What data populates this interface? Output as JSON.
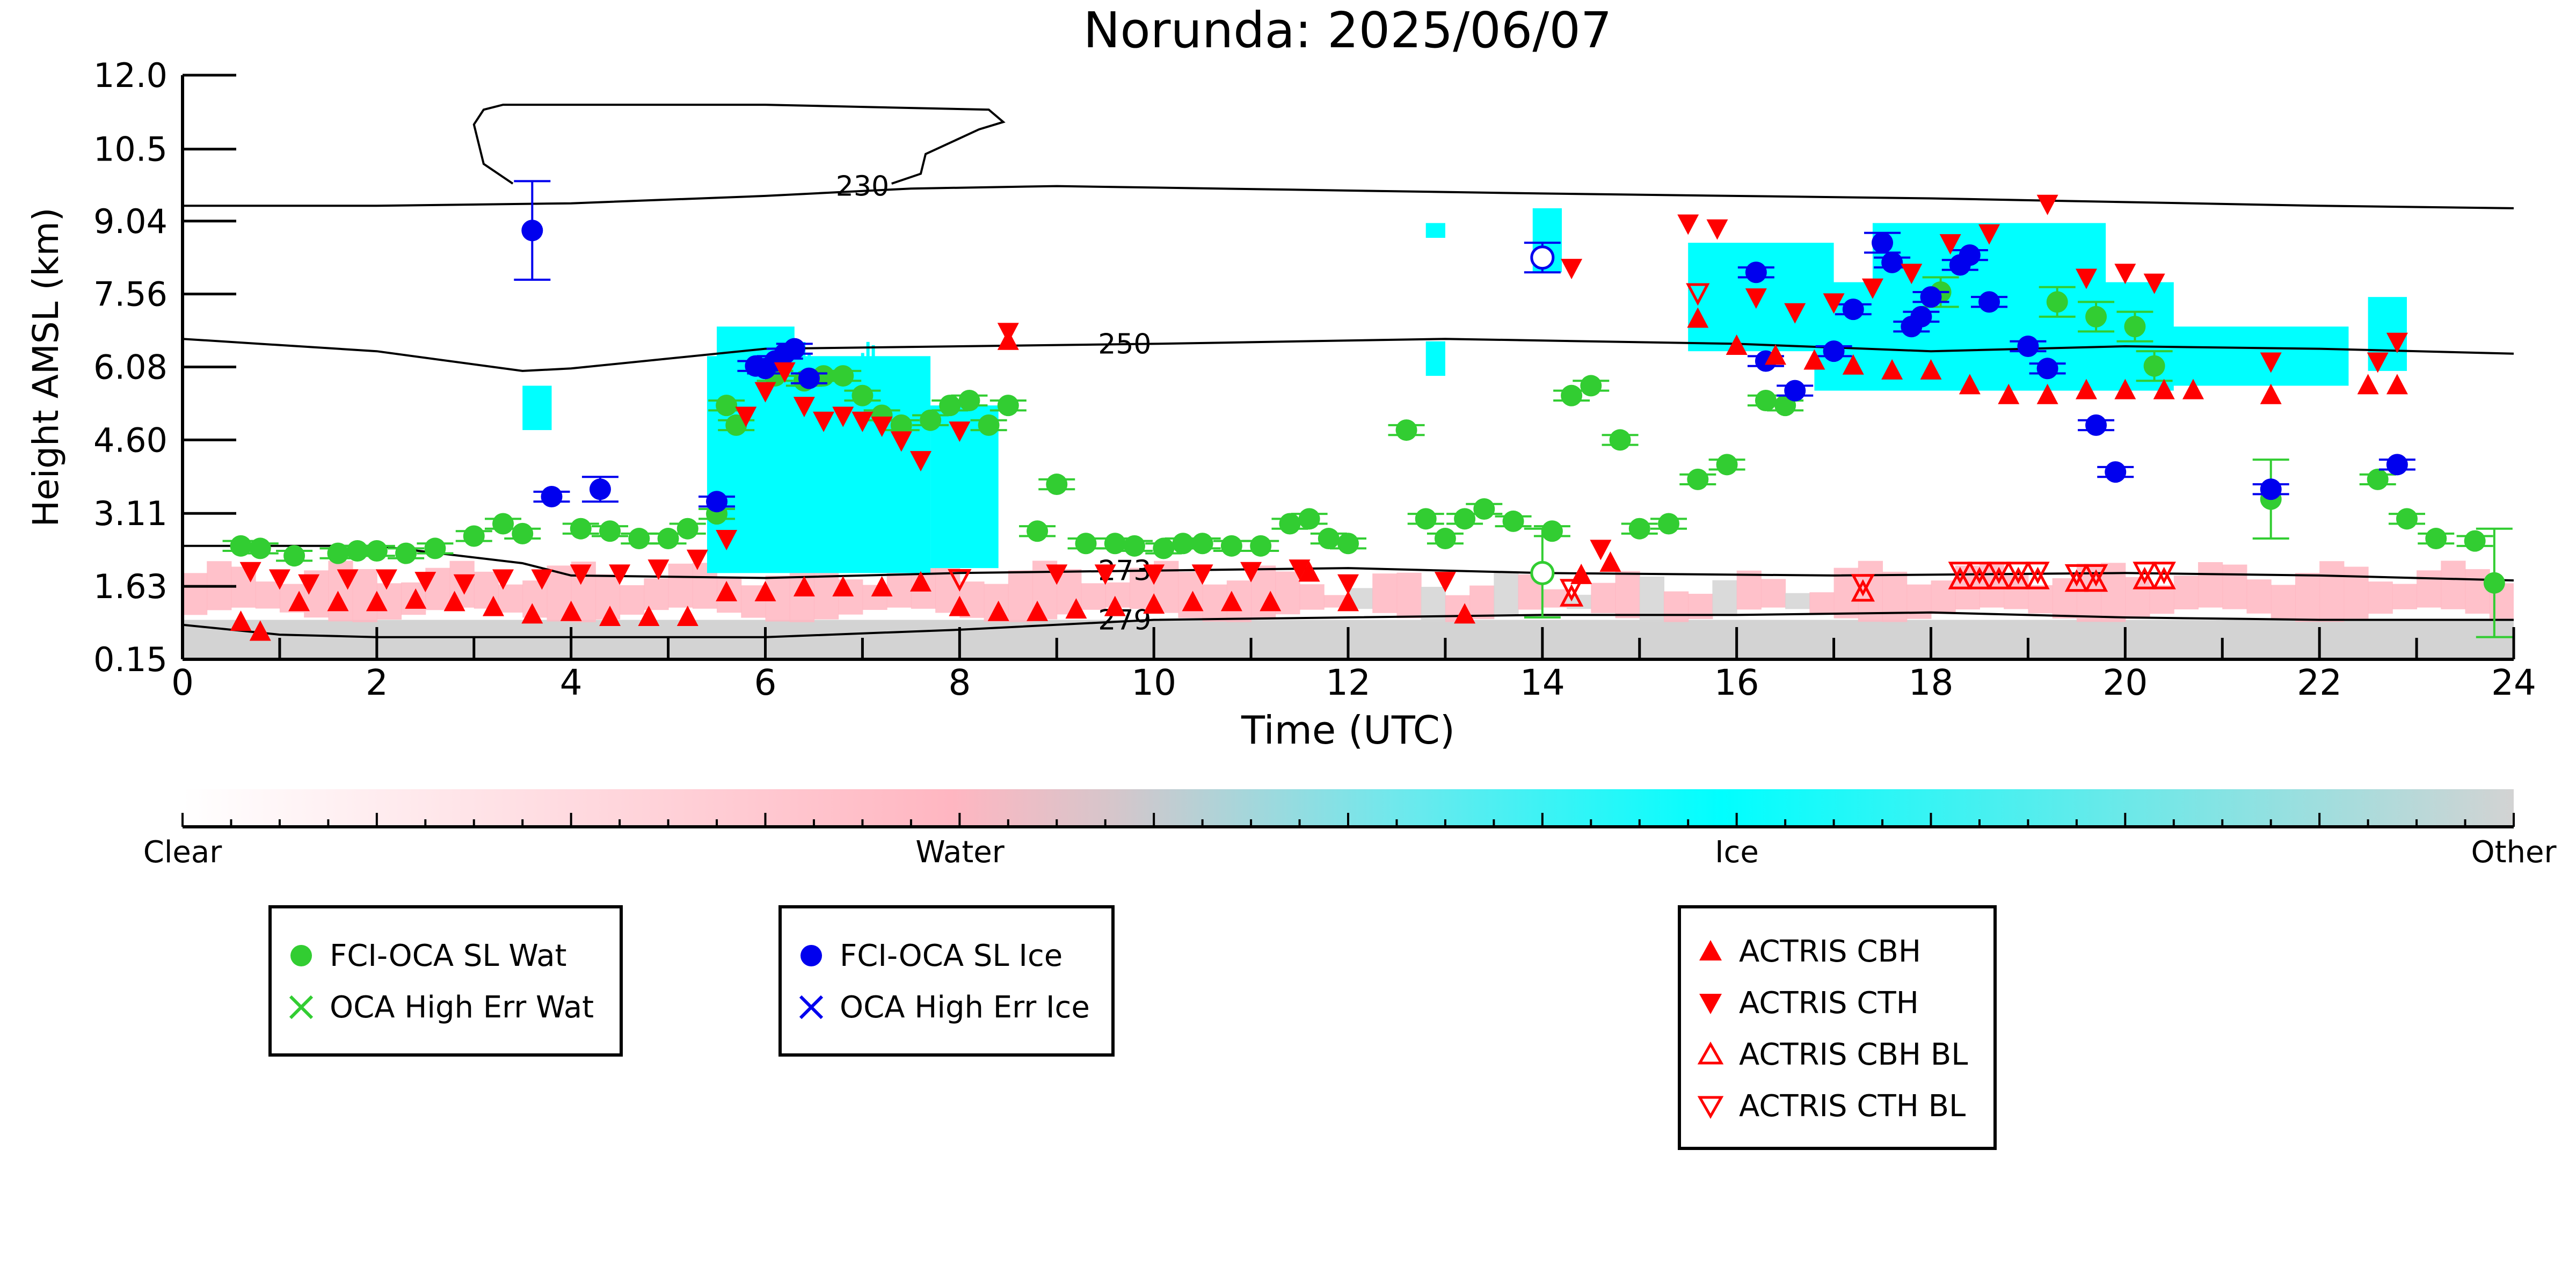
{
  "chart_data": {
    "type": "scatter",
    "title": "Norunda: 2025/06/07",
    "xlabel": "Time (UTC)",
    "ylabel": "Height AMSL (km)",
    "xlim": [
      0,
      24
    ],
    "xticks": [
      "0",
      "2",
      "4",
      "6",
      "8",
      "10",
      "12",
      "14",
      "16",
      "18",
      "20",
      "22",
      "24"
    ],
    "ytick_labels": [
      "0.15",
      "1.63",
      "3.11",
      "4.60",
      "6.08",
      "7.56",
      "9.04",
      "10.5",
      "12.0"
    ],
    "ylim": [
      0.15,
      12.0
    ],
    "grid": false,
    "background_classification": {
      "colorbar_labels": [
        "Clear",
        "Water",
        "Ice",
        "Other"
      ],
      "colors": {
        "clear": "#ffffff",
        "water": "#ffb6c1",
        "ice": "#00ffff",
        "other": "#d3d3d3"
      }
    },
    "temperature_contours": [
      {
        "label": "230",
        "points": [
          [
            0,
            9.35
          ],
          [
            2,
            9.35
          ],
          [
            4,
            9.4
          ],
          [
            6,
            9.55
          ],
          [
            7.5,
            9.7
          ],
          [
            9,
            9.75
          ],
          [
            14,
            9.6
          ],
          [
            18,
            9.5
          ],
          [
            22,
            9.35
          ],
          [
            24,
            9.3
          ]
        ]
      },
      {
        "label": "250",
        "points": [
          [
            0,
            6.65
          ],
          [
            2,
            6.4
          ],
          [
            3.5,
            6.0
          ],
          [
            4,
            6.05
          ],
          [
            6,
            6.45
          ],
          [
            8,
            6.5
          ],
          [
            10,
            6.55
          ],
          [
            13,
            6.65
          ],
          [
            16,
            6.55
          ],
          [
            18,
            6.4
          ],
          [
            20,
            6.5
          ],
          [
            22,
            6.45
          ],
          [
            24,
            6.35
          ]
        ]
      },
      {
        "label": "273",
        "points": [
          [
            0,
            2.45
          ],
          [
            2,
            2.45
          ],
          [
            3.5,
            2.1
          ],
          [
            4,
            1.85
          ],
          [
            6,
            1.8
          ],
          [
            8,
            1.9
          ],
          [
            10,
            1.95
          ],
          [
            12,
            2.0
          ],
          [
            14,
            1.9
          ],
          [
            17,
            1.85
          ],
          [
            20,
            1.9
          ],
          [
            22,
            1.85
          ],
          [
            24,
            1.75
          ]
        ]
      },
      {
        "label": "279",
        "points": [
          [
            0,
            0.85
          ],
          [
            1,
            0.65
          ],
          [
            2,
            0.6
          ],
          [
            4,
            0.6
          ],
          [
            6,
            0.6
          ],
          [
            8,
            0.75
          ],
          [
            10,
            0.95
          ],
          [
            12,
            1.0
          ],
          [
            14,
            1.05
          ],
          [
            16,
            1.05
          ],
          [
            18,
            1.1
          ],
          [
            20,
            1.0
          ],
          [
            22,
            0.95
          ],
          [
            24,
            0.95
          ]
        ]
      }
    ],
    "series": [
      {
        "name": "FCI-OCA SL Wat",
        "color": "#32cd32",
        "marker": "circle",
        "x": [
          0.6,
          0.8,
          1.15,
          1.6,
          1.8,
          2.0,
          2.3,
          2.6,
          3.0,
          3.3,
          3.5,
          4.1,
          4.4,
          4.7,
          5.0,
          5.2,
          5.5,
          5.7,
          5.6,
          6.1,
          6.4,
          6.6,
          6.8,
          7.0,
          7.2,
          7.4,
          7.7,
          7.9,
          8.1,
          8.3,
          8.5,
          8.8,
          9.0,
          9.3,
          9.6,
          9.8,
          10.1,
          10.3,
          10.5,
          10.8,
          11.1,
          11.4,
          11.6,
          11.8,
          12.0,
          12.6,
          12.8,
          13.0,
          13.2,
          13.4,
          13.7,
          14.1,
          14.3,
          14.5,
          14.8,
          15.0,
          15.3,
          15.6,
          15.9,
          16.3,
          16.5,
          18.1,
          19.3,
          19.7,
          20.1,
          20.3,
          21.5,
          22.6,
          22.9,
          23.2,
          23.6,
          23.8
        ],
        "y": [
          2.45,
          2.4,
          2.25,
          2.3,
          2.35,
          2.35,
          2.3,
          2.4,
          2.65,
          2.9,
          2.7,
          2.8,
          2.75,
          2.6,
          2.6,
          2.8,
          3.1,
          4.9,
          5.3,
          5.9,
          5.8,
          5.9,
          5.9,
          5.5,
          5.1,
          4.9,
          5.0,
          5.3,
          5.4,
          4.9,
          5.3,
          2.75,
          3.7,
          2.5,
          2.5,
          2.45,
          2.4,
          2.5,
          2.5,
          2.45,
          2.45,
          2.9,
          3.0,
          2.6,
          2.5,
          4.8,
          3.0,
          2.6,
          3.0,
          3.2,
          2.95,
          2.75,
          5.5,
          5.7,
          4.6,
          2.8,
          2.9,
          3.8,
          4.1,
          5.4,
          5.3,
          7.6,
          7.4,
          7.1,
          6.9,
          6.1,
          3.4,
          3.8,
          3.0,
          2.6,
          2.55,
          1.7
        ],
        "yerr": [
          0.1,
          0.1,
          0.1,
          0.1,
          0.1,
          0.1,
          0.1,
          0.1,
          0.1,
          0.1,
          0.1,
          0.1,
          0.1,
          0.1,
          0.1,
          0.1,
          0.1,
          0.1,
          0.1,
          0.1,
          0.1,
          0.1,
          0.1,
          0.1,
          0.1,
          0.1,
          0.1,
          0.1,
          0.1,
          0.1,
          0.1,
          0.1,
          0.1,
          0.1,
          0.1,
          0.1,
          0.1,
          0.1,
          0.1,
          0.1,
          0.1,
          0.1,
          0.1,
          0.1,
          0.1,
          0.1,
          0.1,
          0.1,
          0.1,
          0.1,
          0.1,
          0.1,
          0.1,
          0.1,
          0.1,
          0.1,
          0.1,
          0.1,
          0.1,
          0.1,
          0.1,
          0.3,
          0.3,
          0.3,
          0.3,
          0.3,
          0.8,
          0.1,
          0.1,
          0.1,
          0.1,
          1.1
        ]
      },
      {
        "name": "OCA High Err Wat (hollow)",
        "color": "#32cd32",
        "marker": "circle-open",
        "x": [
          14.0
        ],
        "y": [
          1.9
        ],
        "yerr": [
          0.9
        ]
      },
      {
        "name": "FCI-OCA SL Ice",
        "color": "#0000ee",
        "marker": "circle",
        "x": [
          3.6,
          3.8,
          4.3,
          5.5,
          5.9,
          6.0,
          6.1,
          6.2,
          6.3,
          6.45,
          16.2,
          16.3,
          16.6,
          17.0,
          17.2,
          17.5,
          17.6,
          17.8,
          17.9,
          18.0,
          18.3,
          18.4,
          18.6,
          19.0,
          19.2,
          19.7,
          19.9,
          21.5,
          22.8
        ],
        "y": [
          8.85,
          3.45,
          3.6,
          3.35,
          6.1,
          6.05,
          6.2,
          6.35,
          6.45,
          5.85,
          8.0,
          6.2,
          5.6,
          6.4,
          7.25,
          8.6,
          8.2,
          6.9,
          7.1,
          7.5,
          8.15,
          8.35,
          7.4,
          6.5,
          6.05,
          4.9,
          3.95,
          3.6,
          4.1
        ],
        "yerr": [
          1.0,
          0.1,
          0.25,
          0.1,
          0.1,
          0.1,
          0.1,
          0.1,
          0.1,
          0.1,
          0.1,
          0.1,
          0.1,
          0.1,
          0.1,
          0.2,
          0.1,
          0.1,
          0.1,
          0.1,
          0.1,
          0.1,
          0.1,
          0.1,
          0.1,
          0.1,
          0.1,
          0.1,
          0.1
        ]
      },
      {
        "name": "OCA High Err Ice (hollow)",
        "color": "#0000ee",
        "marker": "circle-open",
        "x": [
          14.0
        ],
        "y": [
          8.3
        ],
        "yerr": [
          0.3
        ]
      },
      {
        "name": "ACTRIS CBH",
        "color": "#ff0000",
        "marker": "triangle-up",
        "x": [
          0.6,
          0.8,
          1.2,
          1.6,
          2.0,
          2.4,
          2.8,
          3.2,
          3.6,
          4.0,
          4.4,
          4.8,
          5.2,
          5.6,
          6.0,
          6.4,
          6.8,
          7.2,
          7.6,
          8.0,
          8.4,
          8.8,
          9.2,
          9.6,
          10.0,
          10.4,
          10.8,
          11.2,
          11.6,
          12.0,
          13.2,
          14.4,
          14.7,
          15.6,
          16.0,
          16.4,
          16.8,
          17.2,
          17.6,
          18.0,
          18.4,
          18.8,
          19.2,
          19.6,
          20.0,
          20.4,
          20.7,
          21.5,
          22.5,
          22.8,
          8.5
        ],
        "y": [
          0.9,
          0.7,
          1.3,
          1.3,
          1.3,
          1.35,
          1.3,
          1.2,
          1.05,
          1.1,
          1.0,
          1.0,
          1.0,
          1.5,
          1.5,
          1.6,
          1.6,
          1.6,
          1.7,
          1.2,
          1.1,
          1.1,
          1.15,
          1.2,
          1.25,
          1.3,
          1.3,
          1.3,
          1.9,
          1.3,
          1.05,
          1.85,
          2.1,
          7.05,
          6.5,
          6.3,
          6.2,
          6.1,
          6.0,
          6.0,
          5.7,
          5.5,
          5.5,
          5.6,
          5.6,
          5.6,
          5.6,
          5.5,
          5.7,
          5.7,
          6.6
        ]
      },
      {
        "name": "ACTRIS CTH",
        "color": "#ff0000",
        "marker": "triangle-down",
        "x": [
          0.7,
          1.0,
          1.3,
          1.7,
          2.1,
          2.5,
          2.9,
          3.3,
          3.7,
          4.1,
          4.5,
          4.9,
          5.3,
          5.6,
          5.8,
          6.0,
          6.2,
          6.4,
          6.6,
          6.8,
          7.0,
          7.2,
          7.4,
          7.6,
          8.0,
          8.5,
          9.0,
          9.5,
          10.0,
          10.5,
          11.0,
          11.5,
          12.0,
          13.0,
          14.3,
          14.6,
          15.5,
          15.8,
          16.2,
          16.6,
          17.0,
          17.4,
          17.8,
          18.2,
          18.6,
          19.2,
          19.6,
          20.0,
          20.3,
          21.5,
          22.6,
          22.8
        ],
        "y": [
          1.95,
          1.8,
          1.7,
          1.8,
          1.8,
          1.75,
          1.7,
          1.8,
          1.8,
          1.9,
          1.9,
          2.0,
          2.2,
          2.6,
          5.1,
          5.6,
          6.0,
          5.3,
          5.0,
          5.1,
          5.0,
          4.9,
          4.6,
          4.2,
          4.8,
          6.8,
          1.9,
          1.9,
          1.9,
          1.9,
          1.95,
          2.0,
          1.7,
          1.75,
          8.1,
          2.4,
          9.0,
          8.9,
          7.5,
          7.2,
          7.4,
          7.7,
          8.0,
          8.6,
          8.8,
          9.4,
          7.9,
          8.0,
          7.8,
          6.2,
          6.2,
          6.6
        ]
      },
      {
        "name": "ACTRIS CBH BL",
        "color": "#ff0000",
        "marker": "triangle-up-open",
        "x": [
          14.3,
          17.3,
          18.3,
          18.5,
          18.7,
          18.9,
          19.1,
          19.5,
          19.7,
          20.2,
          20.4
        ],
        "y": [
          1.4,
          1.5,
          1.75,
          1.75,
          1.75,
          1.75,
          1.75,
          1.7,
          1.7,
          1.75,
          1.75
        ]
      },
      {
        "name": "ACTRIS CTH BL",
        "color": "#ff0000",
        "marker": "triangle-down-open",
        "x": [
          8.0,
          14.3,
          15.6,
          17.3,
          18.3,
          18.5,
          18.7,
          18.9,
          19.1,
          19.5,
          19.7,
          20.2,
          20.4
        ],
        "y": [
          1.8,
          1.6,
          7.6,
          1.7,
          1.95,
          1.95,
          1.95,
          1.95,
          1.95,
          1.9,
          1.9,
          1.95,
          1.95
        ]
      }
    ],
    "legend": {
      "group1": [
        "FCI-OCA SL Wat",
        "OCA High Err Wat"
      ],
      "group2": [
        "FCI-OCA SL Ice",
        "OCA High Err Ice"
      ],
      "group3": [
        "ACTRIS CBH",
        "ACTRIS CTH",
        "ACTRIS CBH BL",
        "ACTRIS CTH BL"
      ]
    }
  }
}
